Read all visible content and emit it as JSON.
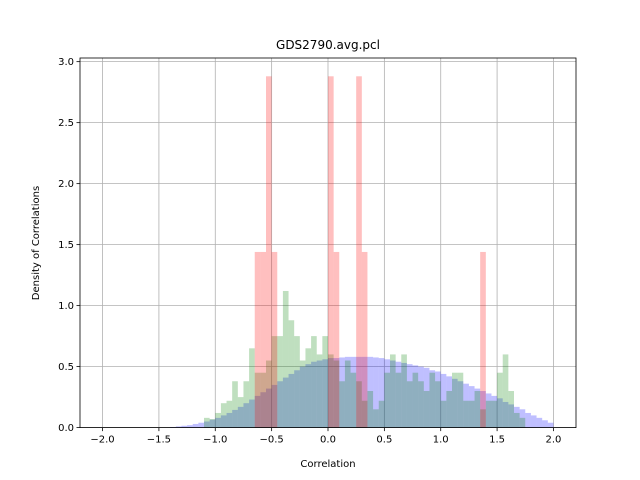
{
  "chart_data": {
    "type": "bar",
    "title": "GDS2790.avg.pcl",
    "xlabel": "Correlation",
    "ylabel": "Density of Correlations",
    "xlim": [
      -2.2,
      2.2
    ],
    "ylim": [
      0,
      3.03
    ],
    "grid": true,
    "x_ticks": [
      "−2.0",
      "−1.5",
      "−1.0",
      "−0.5",
      "0.0",
      "0.5",
      "1.0",
      "1.5",
      "2.0"
    ],
    "x_tick_values": [
      -2.0,
      -1.5,
      -1.0,
      -0.5,
      0.0,
      0.5,
      1.0,
      1.5,
      2.0
    ],
    "y_ticks": [
      "0.0",
      "0.5",
      "1.0",
      "1.5",
      "2.0",
      "2.5",
      "3.0"
    ],
    "y_tick_values": [
      0.0,
      0.5,
      1.0,
      1.5,
      2.0,
      2.5,
      3.0
    ],
    "series": [
      {
        "color": "#0000ff",
        "opacity": 0.25,
        "bin_start": -2.0,
        "bin_width": 0.05,
        "values": [
          0,
          0,
          0,
          0,
          0,
          0,
          0,
          0,
          0,
          0,
          0,
          0,
          0.005,
          0.01,
          0.015,
          0.02,
          0.03,
          0.04,
          0.05,
          0.065,
          0.08,
          0.1,
          0.12,
          0.145,
          0.17,
          0.2,
          0.23,
          0.26,
          0.29,
          0.32,
          0.35,
          0.38,
          0.41,
          0.44,
          0.47,
          0.5,
          0.52,
          0.54,
          0.55,
          0.56,
          0.57,
          0.57,
          0.575,
          0.58,
          0.58,
          0.58,
          0.58,
          0.58,
          0.575,
          0.57,
          0.56,
          0.55,
          0.54,
          0.53,
          0.52,
          0.51,
          0.5,
          0.49,
          0.47,
          0.46,
          0.44,
          0.42,
          0.4,
          0.38,
          0.36,
          0.34,
          0.32,
          0.3,
          0.28,
          0.26,
          0.24,
          0.21,
          0.19,
          0.17,
          0.15,
          0.12,
          0.1,
          0.08,
          0.06,
          0.04,
          0
        ]
      },
      {
        "color": "#008000",
        "opacity": 0.25,
        "bin_start": -2.0,
        "bin_width": 0.05,
        "values": [
          0,
          0,
          0,
          0,
          0,
          0,
          0,
          0,
          0,
          0,
          0,
          0,
          0,
          0,
          0,
          0,
          0,
          0,
          0.08,
          0.07,
          0.12,
          0.2,
          0.22,
          0.38,
          0.25,
          0.38,
          0.65,
          0.45,
          0.45,
          0.55,
          0.75,
          0.75,
          1.12,
          0.88,
          0.75,
          0.55,
          0.65,
          0.75,
          0.6,
          0.75,
          0.6,
          0.55,
          0.38,
          0.55,
          0.45,
          0.38,
          0.22,
          0.3,
          0.15,
          0.22,
          0.45,
          0.6,
          0.45,
          0.6,
          0.38,
          0.45,
          0.38,
          0.3,
          0.45,
          0.38,
          0.22,
          0.3,
          0.45,
          0.45,
          0.22,
          0.22,
          0.3,
          0.15,
          0.22,
          0.22,
          0.45,
          0.6,
          0.3,
          0.12,
          0.08,
          0,
          0,
          0,
          0,
          0,
          0
        ]
      },
      {
        "color": "#ff0000",
        "opacity": 0.25,
        "bin_start": -2.0,
        "bin_width": 0.05,
        "values": [
          0,
          0,
          0,
          0,
          0,
          0,
          0,
          0,
          0,
          0,
          0,
          0,
          0,
          0,
          0,
          0,
          0,
          0,
          0,
          0,
          0,
          0,
          0,
          0,
          0,
          0,
          0,
          1.44,
          1.44,
          2.88,
          1.44,
          0,
          0,
          0,
          0,
          0,
          0,
          0,
          0,
          0,
          2.88,
          1.44,
          0,
          0,
          0,
          2.88,
          1.44,
          0,
          0,
          0,
          0,
          0,
          0,
          0,
          0,
          0,
          0,
          0,
          0,
          0,
          0,
          0,
          0,
          0,
          0,
          0,
          0,
          1.44,
          0,
          0,
          0,
          0,
          0,
          0,
          0,
          0,
          0,
          0,
          0,
          0,
          0
        ]
      }
    ]
  }
}
